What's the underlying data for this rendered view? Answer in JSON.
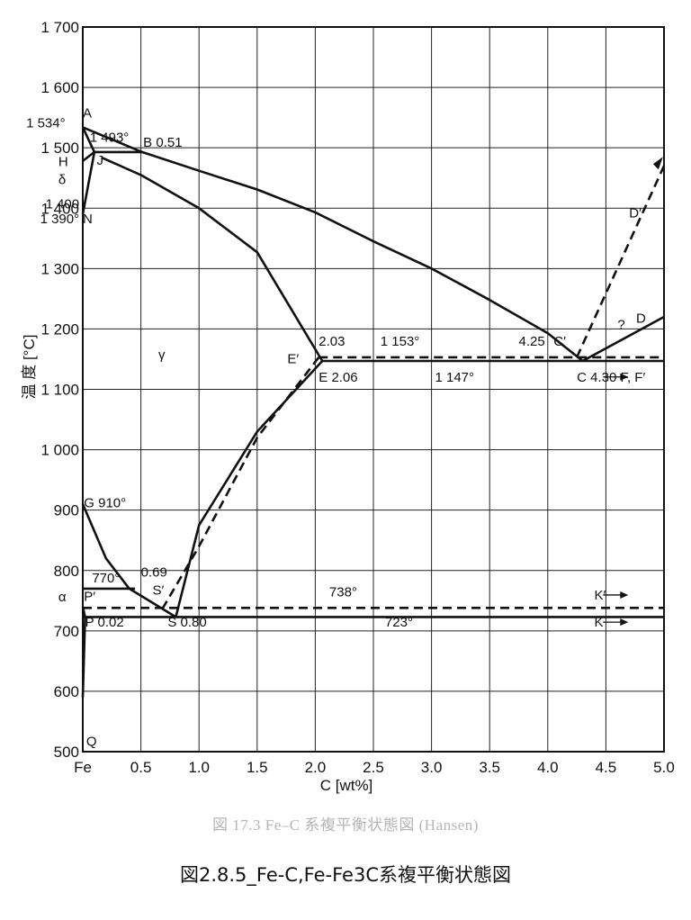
{
  "chart_data": {
    "type": "line",
    "title": "",
    "xlabel": "C [wt%]",
    "ylabel": "温 度 [°C]",
    "xlim": [
      0,
      5.0
    ],
    "ylim": [
      500,
      1700
    ],
    "x_ticks": [
      {
        "value": 0,
        "label": "Fe"
      },
      {
        "value": 0.5,
        "label": "0.5"
      },
      {
        "value": 1.0,
        "label": "1.0"
      },
      {
        "value": 1.5,
        "label": "1.5"
      },
      {
        "value": 2.0,
        "label": "2.0"
      },
      {
        "value": 2.5,
        "label": "2.5"
      },
      {
        "value": 3.0,
        "label": "3.0"
      },
      {
        "value": 3.5,
        "label": "3.5"
      },
      {
        "value": 4.0,
        "label": "4.0"
      },
      {
        "value": 4.5,
        "label": "4.5"
      },
      {
        "value": 5.0,
        "label": "5.0"
      }
    ],
    "y_ticks": [
      {
        "value": 500,
        "label": "500"
      },
      {
        "value": 600,
        "label": "600"
      },
      {
        "value": 700,
        "label": "700"
      },
      {
        "value": 800,
        "label": "800"
      },
      {
        "value": 900,
        "label": "900"
      },
      {
        "value": 1000,
        "label": "1 000"
      },
      {
        "value": 1100,
        "label": "1 100"
      },
      {
        "value": 1200,
        "label": "1 200"
      },
      {
        "value": 1300,
        "label": "1 300"
      },
      {
        "value": 1400,
        "label": "1 400"
      },
      {
        "value": 1500,
        "label": "1 500"
      },
      {
        "value": 1600,
        "label": "1 600"
      },
      {
        "value": 1700,
        "label": "1 700"
      }
    ],
    "grid": true,
    "series": [
      {
        "dash": false,
        "points": [
          [
            0,
            1534
          ],
          [
            0.51,
            1493
          ],
          [
            1.0,
            1462
          ],
          [
            1.5,
            1431
          ],
          [
            2.0,
            1393
          ],
          [
            2.5,
            1345
          ],
          [
            3.0,
            1300
          ],
          [
            3.5,
            1248
          ],
          [
            4.0,
            1193
          ],
          [
            4.3,
            1147
          ]
        ]
      },
      {
        "dash": false,
        "points": [
          [
            0,
            1534
          ],
          [
            0.1,
            1493
          ]
        ]
      },
      {
        "dash": false,
        "points": [
          [
            0,
            1390
          ],
          [
            0.1,
            1493
          ]
        ]
      },
      {
        "dash": false,
        "points": [
          [
            0,
            1478
          ],
          [
            0.1,
            1493
          ]
        ]
      },
      {
        "dash": false,
        "points": [
          [
            0.1,
            1493
          ],
          [
            0.51,
            1493
          ]
        ]
      },
      {
        "dash": false,
        "points": [
          [
            0.16,
            1484
          ],
          [
            0.5,
            1455
          ],
          [
            1.0,
            1400
          ],
          [
            1.5,
            1327
          ],
          [
            2.06,
            1147
          ]
        ]
      },
      {
        "dash": false,
        "points": [
          [
            2.06,
            1147
          ],
          [
            1.5,
            1030
          ],
          [
            1.0,
            875
          ],
          [
            0.8,
            723
          ]
        ]
      },
      {
        "dash": false,
        "points": [
          [
            0,
            910
          ],
          [
            0.2,
            820
          ],
          [
            0.4,
            770
          ],
          [
            0.8,
            723
          ]
        ]
      },
      {
        "dash": false,
        "points": [
          [
            0,
            770
          ],
          [
            0.45,
            770
          ]
        ]
      },
      {
        "dash": false,
        "points": [
          [
            0,
            723
          ],
          [
            5.0,
            723
          ]
        ]
      },
      {
        "dash": false,
        "points": [
          [
            2.06,
            1147
          ],
          [
            5.0,
            1147
          ]
        ]
      },
      {
        "dash": false,
        "points": [
          [
            4.3,
            1147
          ],
          [
            5.0,
            1220
          ]
        ]
      },
      {
        "dash": false,
        "points": [
          [
            0,
            740
          ],
          [
            0.02,
            723
          ],
          [
            0,
            590
          ]
        ]
      },
      {
        "dash": true,
        "points": [
          [
            2.03,
            1153
          ],
          [
            5.0,
            1153
          ]
        ]
      },
      {
        "dash": true,
        "points": [
          [
            0,
            738
          ],
          [
            5.0,
            738
          ]
        ]
      },
      {
        "dash": true,
        "points": [
          [
            2.03,
            1153
          ],
          [
            1.5,
            1020
          ],
          [
            1.0,
            840
          ],
          [
            0.69,
            738
          ]
        ]
      },
      {
        "dash": true,
        "points": [
          [
            4.25,
            1153
          ],
          [
            5.0,
            1470
          ]
        ]
      }
    ],
    "annotations": [
      {
        "text": "1 534°",
        "x": -0.15,
        "y": 1534,
        "anchor": "end"
      },
      {
        "text": "A",
        "x": 0.0,
        "y": 1550,
        "anchor": "start"
      },
      {
        "text": "1 493°",
        "x": 0.06,
        "y": 1510,
        "anchor": "start"
      },
      {
        "text": "B 0.51",
        "x": 0.52,
        "y": 1502,
        "anchor": "start"
      },
      {
        "text": "H",
        "x": -0.21,
        "y": 1470,
        "anchor": "start"
      },
      {
        "text": "J",
        "x": 0.12,
        "y": 1472,
        "anchor": "start"
      },
      {
        "text": "δ",
        "x": -0.21,
        "y": 1440,
        "anchor": "start"
      },
      {
        "text": "1 400",
        "x": -0.03,
        "y": 1400,
        "anchor": "end"
      },
      {
        "text": "1 390°",
        "x": -0.03,
        "y": 1375,
        "anchor": "end"
      },
      {
        "text": "N",
        "x": 0.0,
        "y": 1375,
        "anchor": "start"
      },
      {
        "text": "γ",
        "x": 0.65,
        "y": 1150,
        "anchor": "start"
      },
      {
        "text": "E′",
        "x": 1.76,
        "y": 1143,
        "anchor": "start"
      },
      {
        "text": "2.03",
        "x": 2.03,
        "y": 1172,
        "anchor": "start"
      },
      {
        "text": "1 153°",
        "x": 2.56,
        "y": 1172,
        "anchor": "start"
      },
      {
        "text": "4.25",
        "x": 3.75,
        "y": 1172,
        "anchor": "start"
      },
      {
        "text": "C′",
        "x": 4.05,
        "y": 1172,
        "anchor": "start"
      },
      {
        "text": "E 2.06",
        "x": 2.03,
        "y": 1113,
        "anchor": "start"
      },
      {
        "text": "1 147°",
        "x": 3.03,
        "y": 1113,
        "anchor": "start"
      },
      {
        "text": "C 4.30 F, F′",
        "x": 4.25,
        "y": 1113,
        "anchor": "start"
      },
      {
        "text": "D′",
        "x": 4.7,
        "y": 1385,
        "anchor": "start"
      },
      {
        "text": "?",
        "x": 4.6,
        "y": 1200,
        "anchor": "start"
      },
      {
        "text": "D",
        "x": 4.76,
        "y": 1210,
        "anchor": "start"
      },
      {
        "text": "G 910°",
        "x": 0.01,
        "y": 905,
        "anchor": "start"
      },
      {
        "text": "0.69",
        "x": 0.5,
        "y": 790,
        "anchor": "start"
      },
      {
        "text": "770°",
        "x": 0.08,
        "y": 780,
        "anchor": "start"
      },
      {
        "text": "S′",
        "x": 0.6,
        "y": 760,
        "anchor": "start"
      },
      {
        "text": "P′",
        "x": 0.01,
        "y": 750,
        "anchor": "start"
      },
      {
        "text": "α",
        "x": -0.21,
        "y": 749,
        "anchor": "start"
      },
      {
        "text": "738°",
        "x": 2.12,
        "y": 757,
        "anchor": "start"
      },
      {
        "text": "K′",
        "x": 4.4,
        "y": 752,
        "anchor": "start"
      },
      {
        "text": "P 0.02",
        "x": 0.02,
        "y": 707,
        "anchor": "start"
      },
      {
        "text": "S 0.80",
        "x": 0.73,
        "y": 707,
        "anchor": "start"
      },
      {
        "text": "723°",
        "x": 2.6,
        "y": 707,
        "anchor": "start"
      },
      {
        "text": "K",
        "x": 4.4,
        "y": 707,
        "anchor": "start"
      },
      {
        "text": "Q",
        "x": 0.03,
        "y": 510,
        "anchor": "start"
      }
    ]
  },
  "captions": {
    "figure_caption": "図 17.3 Fe–C 系複平衡状態図 (Hansen)",
    "page_caption": "図2.8.5_Fe-C,Fe-Fe3C系複平衡状態図"
  }
}
